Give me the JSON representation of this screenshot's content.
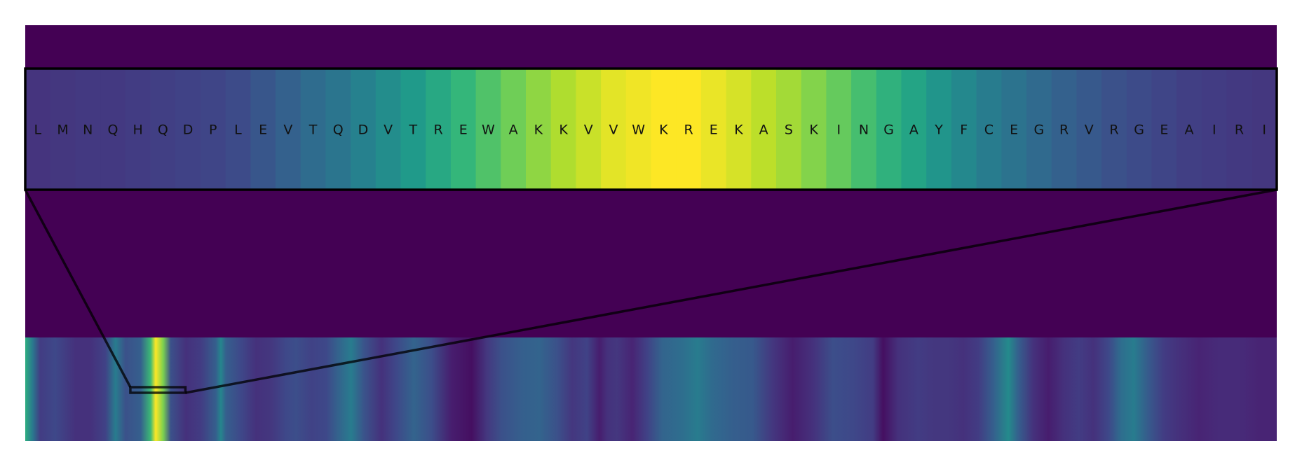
{
  "chart_data": {
    "type": "heatmap",
    "colormap": "viridis",
    "background_color": "#440154",
    "zoom_box_stroke": "#000000",
    "zoomed_sequence": {
      "residues": [
        "L",
        "M",
        "N",
        "Q",
        "H",
        "Q",
        "D",
        "P",
        "L",
        "E",
        "V",
        "T",
        "Q",
        "D",
        "V",
        "T",
        "R",
        "E",
        "W",
        "A",
        "K",
        "K",
        "V",
        "V",
        "W",
        "K",
        "R",
        "E",
        "K",
        "A",
        "S",
        "K",
        "I",
        "N",
        "G",
        "A",
        "Y",
        "F",
        "C",
        "E",
        "G",
        "R",
        "V",
        "R",
        "G",
        "E",
        "A",
        "I",
        "R",
        "I"
      ],
      "values": [
        0.15,
        0.16,
        0.17,
        0.17,
        0.18,
        0.19,
        0.2,
        0.21,
        0.23,
        0.27,
        0.31,
        0.35,
        0.39,
        0.44,
        0.49,
        0.54,
        0.6,
        0.66,
        0.72,
        0.78,
        0.83,
        0.88,
        0.92,
        0.96,
        0.98,
        1.0,
        1.0,
        0.97,
        0.94,
        0.9,
        0.86,
        0.81,
        0.76,
        0.7,
        0.64,
        0.58,
        0.52,
        0.47,
        0.42,
        0.38,
        0.34,
        0.31,
        0.28,
        0.25,
        0.23,
        0.21,
        0.19,
        0.18,
        0.17,
        0.16
      ]
    },
    "full_track": {
      "length": 500,
      "zoom_window": [
        42,
        64
      ],
      "profile": [
        [
          0,
          0.62
        ],
        [
          3,
          0.4
        ],
        [
          6,
          0.18
        ],
        [
          12,
          0.22
        ],
        [
          20,
          0.14
        ],
        [
          26,
          0.14
        ],
        [
          32,
          0.2
        ],
        [
          36,
          0.42
        ],
        [
          40,
          0.25
        ],
        [
          46,
          0.3
        ],
        [
          50,
          0.68
        ],
        [
          52,
          1.0
        ],
        [
          55,
          0.8
        ],
        [
          58,
          0.25
        ],
        [
          64,
          0.14
        ],
        [
          70,
          0.18
        ],
        [
          76,
          0.3
        ],
        [
          78,
          0.46
        ],
        [
          80,
          0.3
        ],
        [
          86,
          0.22
        ],
        [
          92,
          0.14
        ],
        [
          98,
          0.16
        ],
        [
          104,
          0.22
        ],
        [
          108,
          0.24
        ],
        [
          114,
          0.2
        ],
        [
          120,
          0.22
        ],
        [
          125,
          0.32
        ],
        [
          130,
          0.42
        ],
        [
          135,
          0.26
        ],
        [
          142,
          0.14
        ],
        [
          148,
          0.22
        ],
        [
          155,
          0.32
        ],
        [
          162,
          0.24
        ],
        [
          170,
          0.08
        ],
        [
          178,
          0.04
        ],
        [
          184,
          0.16
        ],
        [
          190,
          0.25
        ],
        [
          198,
          0.3
        ],
        [
          205,
          0.32
        ],
        [
          212,
          0.25
        ],
        [
          218,
          0.16
        ],
        [
          224,
          0.2
        ],
        [
          229,
          0.08
        ],
        [
          232,
          0.14
        ],
        [
          236,
          0.16
        ],
        [
          242,
          0.1
        ],
        [
          248,
          0.2
        ],
        [
          254,
          0.32
        ],
        [
          262,
          0.36
        ],
        [
          268,
          0.42
        ],
        [
          274,
          0.34
        ],
        [
          282,
          0.3
        ],
        [
          290,
          0.28
        ],
        [
          298,
          0.16
        ],
        [
          306,
          0.08
        ],
        [
          314,
          0.14
        ],
        [
          322,
          0.24
        ],
        [
          330,
          0.22
        ],
        [
          338,
          0.18
        ],
        [
          342,
          0.04
        ],
        [
          348,
          0.14
        ],
        [
          356,
          0.18
        ],
        [
          362,
          0.16
        ],
        [
          368,
          0.16
        ],
        [
          374,
          0.14
        ],
        [
          380,
          0.18
        ],
        [
          386,
          0.3
        ],
        [
          392,
          0.48
        ],
        [
          396,
          0.3
        ],
        [
          402,
          0.14
        ],
        [
          408,
          0.08
        ],
        [
          414,
          0.14
        ],
        [
          420,
          0.18
        ],
        [
          426,
          0.14
        ],
        [
          432,
          0.22
        ],
        [
          437,
          0.36
        ],
        [
          442,
          0.42
        ],
        [
          448,
          0.28
        ],
        [
          454,
          0.18
        ],
        [
          460,
          0.14
        ],
        [
          468,
          0.1
        ],
        [
          476,
          0.12
        ],
        [
          484,
          0.12
        ],
        [
          492,
          0.1
        ],
        [
          499,
          0.1
        ]
      ]
    }
  }
}
